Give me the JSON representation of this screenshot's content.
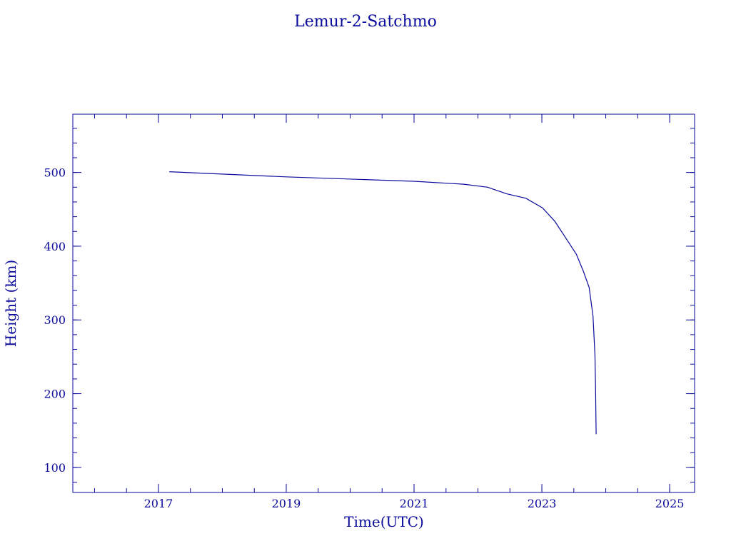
{
  "chart_data": {
    "type": "line",
    "title": "Lemur-2-Satchmo",
    "xlabel": "Time(UTC)",
    "ylabel": "Height (km)",
    "xlim": [
      2015.66,
      2025.39
    ],
    "ylim": [
      66,
      579
    ],
    "x_ticks": [
      2017,
      2019,
      2021,
      2023,
      2025
    ],
    "x_tick_labels": [
      "2017",
      "2019",
      "2021",
      "2023",
      "2025"
    ],
    "x_minor_step": 0.5,
    "y_ticks": [
      100,
      200,
      300,
      400,
      500
    ],
    "y_tick_labels": [
      "100",
      "200",
      "300",
      "400",
      "500"
    ],
    "y_minor_step": 20,
    "grid": false,
    "color": "#0a0a9c",
    "series": [
      {
        "x": [
          2017.17,
          2019.0,
          2021.0,
          2021.78,
          2022.15,
          2022.45,
          2022.75,
          2023.01,
          2023.2,
          2023.42,
          2023.54,
          2023.65,
          2023.74,
          2023.8,
          2023.83,
          2023.84,
          2023.85
        ],
        "y": [
          501,
          494,
          488,
          484,
          480,
          471,
          465,
          452,
          434,
          405,
          389,
          366,
          344,
          305,
          253,
          213,
          145
        ]
      }
    ]
  }
}
